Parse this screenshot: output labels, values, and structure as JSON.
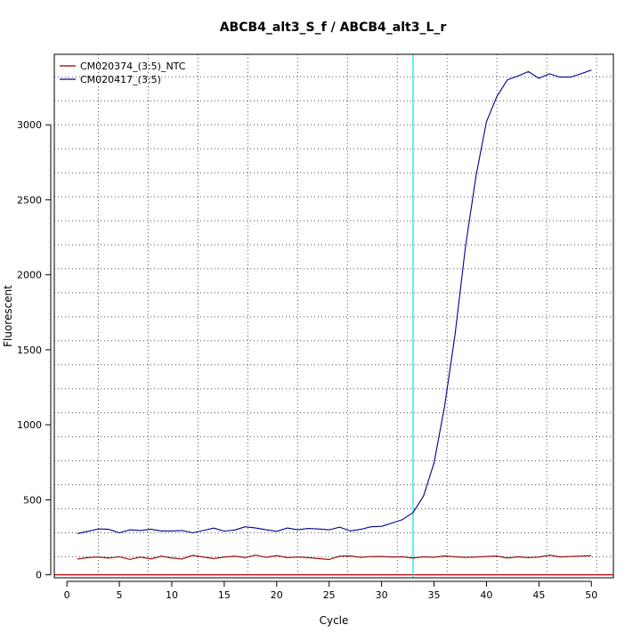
{
  "chart_data": {
    "type": "line",
    "title": "ABCB4_alt3_S_f / ABCB4_alt3_L_r",
    "xlabel": "Cycle",
    "ylabel": "Fluorescent",
    "xlim": [
      -1.2,
      52.1
    ],
    "ylim": [
      -20,
      3470
    ],
    "x_ticks": [
      0,
      5,
      10,
      15,
      20,
      25,
      30,
      35,
      40,
      45,
      50
    ],
    "y_ticks": [
      0,
      500,
      1000,
      1500,
      2000,
      2500,
      3000
    ],
    "x_grid": [
      3,
      7.75,
      12.5,
      17.25,
      22,
      26.75,
      31.5,
      36.25,
      41,
      45.75,
      50.5
    ],
    "y_grid": [
      120,
      280,
      440,
      600,
      760,
      920,
      1080,
      1240,
      1400,
      1560,
      1720,
      1880,
      2040,
      2200,
      2360,
      2520,
      2680,
      2840,
      3000,
      3160,
      3320
    ],
    "grid": true,
    "legend_position": "top-left",
    "threshold": {
      "y": 0,
      "color": "#cc0000"
    },
    "vline": {
      "x": 33,
      "color": "#00e5ee"
    },
    "x": [
      1,
      2,
      3,
      4,
      5,
      6,
      7,
      8,
      9,
      10,
      11,
      12,
      13,
      14,
      15,
      16,
      17,
      18,
      19,
      20,
      21,
      22,
      23,
      24,
      25,
      26,
      27,
      28,
      29,
      30,
      31,
      32,
      33,
      34,
      35,
      36,
      37,
      38,
      39,
      40,
      41,
      42,
      43,
      44,
      45,
      46,
      47,
      48,
      49,
      50
    ],
    "series": [
      {
        "name": "CM020374_(3:5)_NTC",
        "color": "#8b0000",
        "values": [
          105,
          115,
          118,
          112,
          120,
          102,
          118,
          106,
          124,
          112,
          105,
          130,
          118,
          108,
          118,
          124,
          115,
          132,
          116,
          128,
          115,
          118,
          115,
          108,
          102,
          124,
          126,
          116,
          121,
          122,
          118,
          120,
          112,
          120,
          117,
          126,
          120,
          116,
          118,
          122,
          125,
          112,
          120,
          115,
          118,
          131,
          119,
          122,
          124,
          128
        ]
      },
      {
        "name": "CM020417_(3:5)",
        "color": "#00008b",
        "values": [
          275,
          290,
          306,
          303,
          280,
          300,
          295,
          304,
          292,
          292,
          295,
          280,
          295,
          311,
          291,
          299,
          320,
          312,
          300,
          290,
          312,
          300,
          309,
          305,
          300,
          318,
          292,
          303,
          320,
          323,
          345,
          368,
          415,
          525,
          745,
          1120,
          1600,
          2190,
          2660,
          3020,
          3190,
          3300,
          3325,
          3355,
          3310,
          3340,
          3318,
          3318,
          3340,
          3365
        ]
      }
    ]
  }
}
